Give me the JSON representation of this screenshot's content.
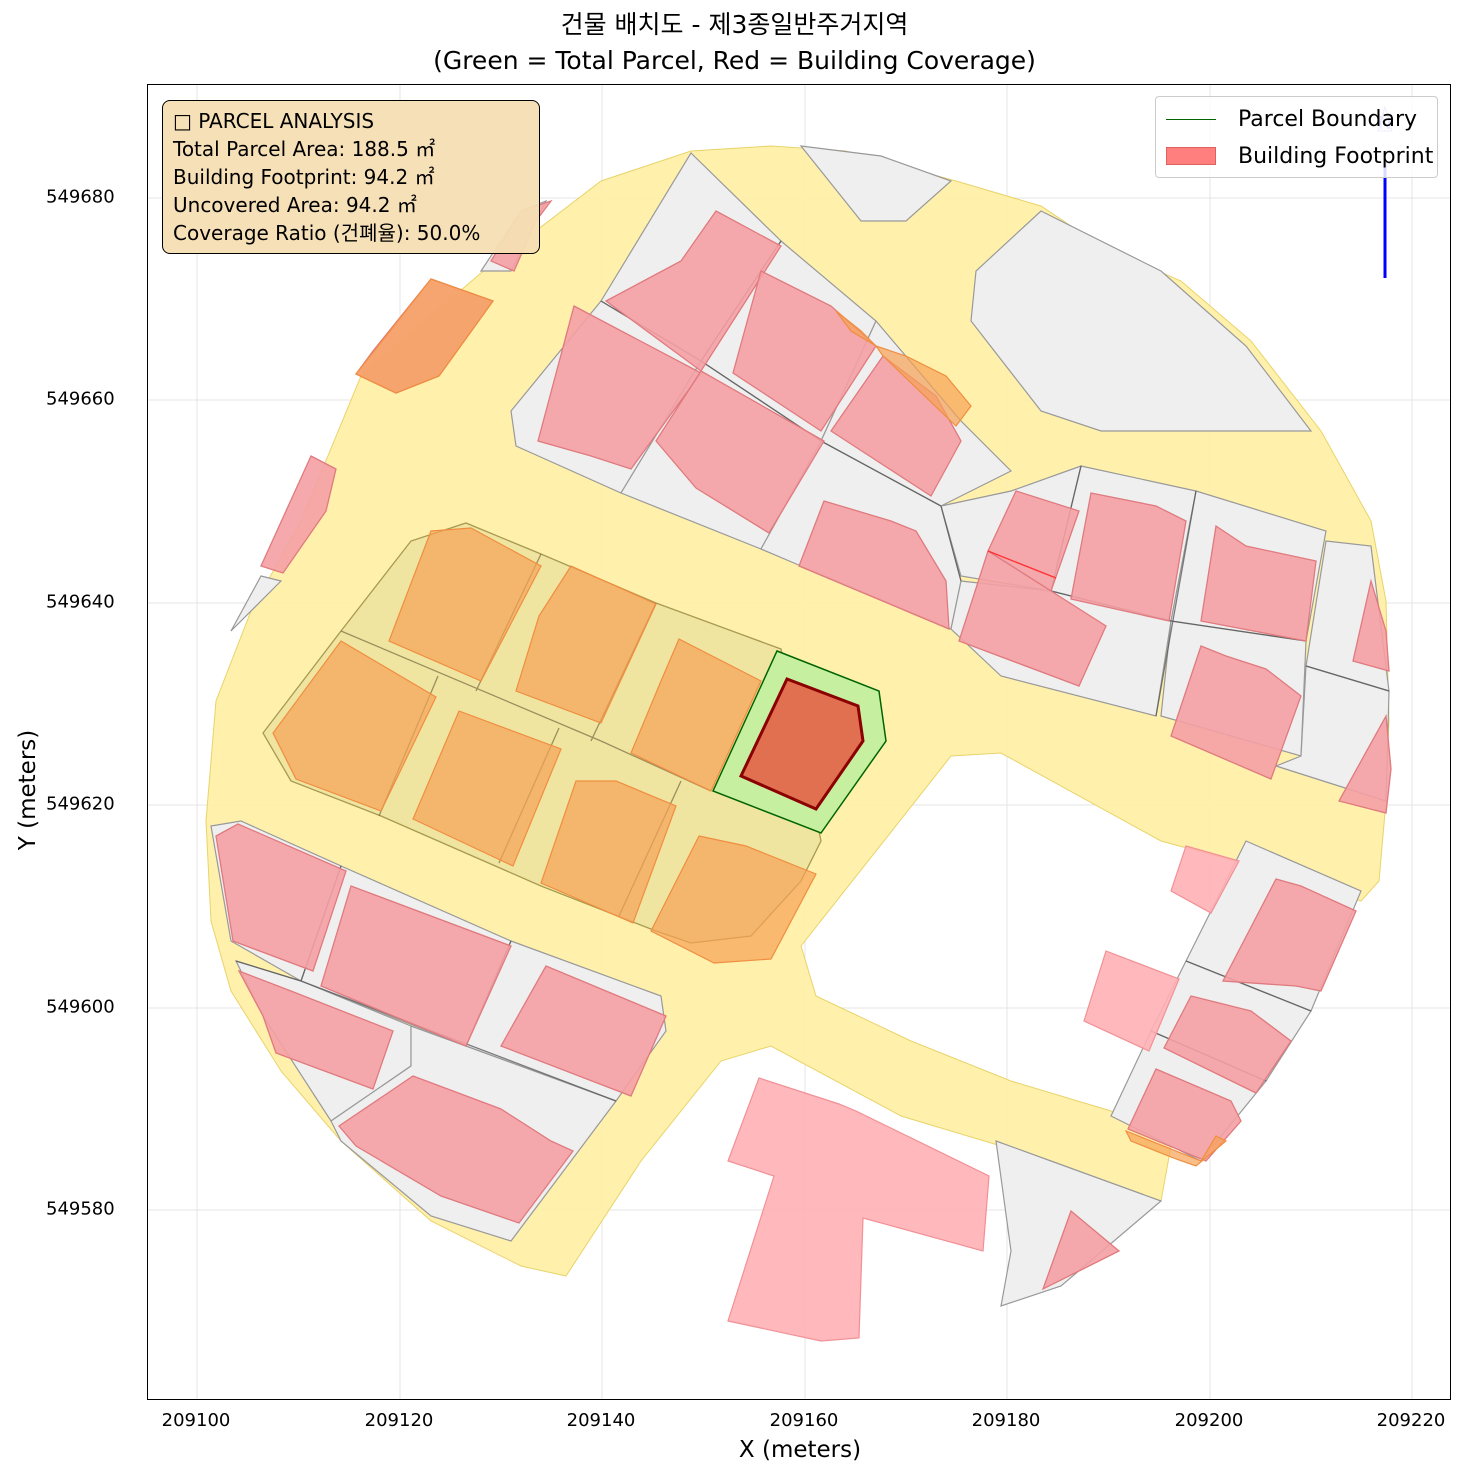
{
  "title": {
    "line1": "건물 배치도 - 제3종일반주거지역",
    "line2": "(Green = Total Parcel, Red = Building Coverage)"
  },
  "axes": {
    "xlabel": "X (meters)",
    "ylabel": "Y (meters)",
    "xticks": [
      "209100",
      "209120",
      "209140",
      "209160",
      "209180",
      "209200",
      "209220"
    ],
    "yticks": [
      "549680",
      "549660",
      "549640",
      "549620",
      "549600",
      "549580"
    ],
    "xlim": [
      209095,
      209224
    ],
    "ylim": [
      549561,
      549691
    ],
    "grid": true
  },
  "info_box": {
    "heading": "□ PARCEL ANALYSIS",
    "total_parcel": "Total Parcel Area: 188.5 ㎡",
    "building_footprint": "Building Footprint: 94.2 ㎡",
    "uncovered": "Uncovered Area: 94.2 ㎡",
    "coverage_ratio": "Coverage Ratio (건폐율): 50.0%"
  },
  "legend": {
    "parcel_boundary": "Parcel Boundary",
    "building_footprint": "Building Footprint",
    "placement": "top-right"
  },
  "colors": {
    "parcel_fill": "#c6efa0",
    "parcel_edge": "#006400",
    "building_fill": "#e07050",
    "building_edge": "#8b0000",
    "context_building": "#f4a0a4",
    "road": "#fff0a8",
    "lot": "#efefef",
    "north_arrow": "#0000ff"
  },
  "map_features": {
    "target_parcel": "parcel",
    "target_building": "building",
    "north_arrow": "north-arrow-icon"
  }
}
